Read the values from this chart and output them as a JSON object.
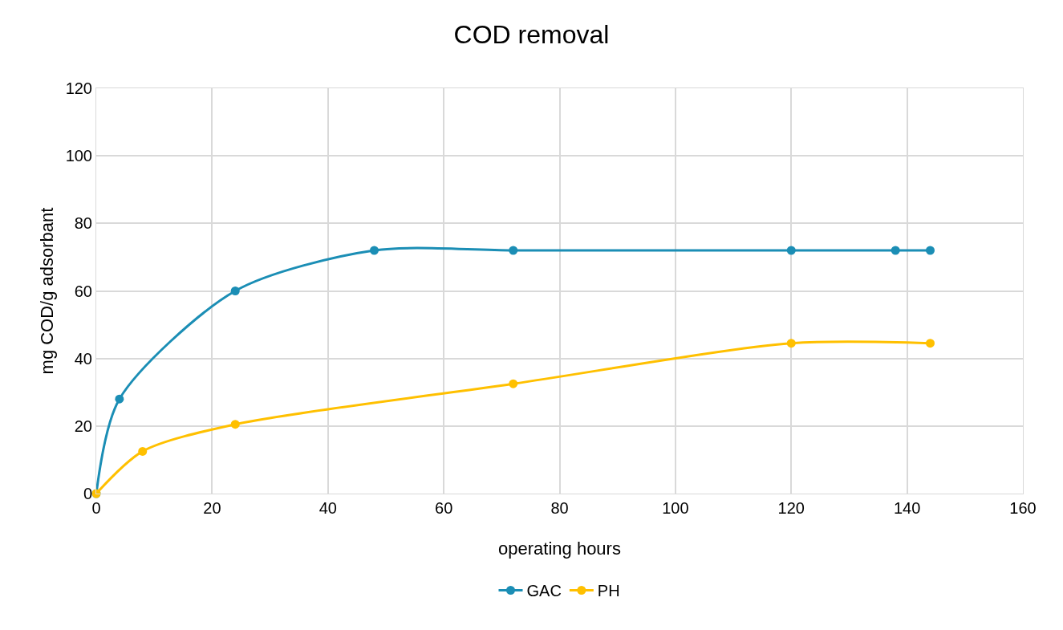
{
  "chart_data": {
    "type": "line",
    "title": "COD removal",
    "xlabel": "operating hours",
    "ylabel": "mg COD/g adsorbant",
    "xlim": [
      0,
      160
    ],
    "xticks": [
      0,
      20,
      40,
      60,
      80,
      100,
      120,
      140,
      160
    ],
    "ylim": [
      0,
      120
    ],
    "yticks": [
      0,
      20,
      40,
      60,
      80,
      100,
      120
    ],
    "grid": true,
    "legend": "bottom",
    "marker": "circle",
    "line_style": "solid",
    "series": [
      {
        "name": "GAC",
        "color": "#1b8eb5",
        "x": [
          0,
          4,
          24,
          48,
          72,
          120,
          138,
          144
        ],
        "values": [
          0,
          28,
          60,
          72,
          72,
          72,
          72,
          72
        ]
      },
      {
        "name": "PH",
        "color": "#ffc000",
        "x": [
          0,
          8,
          24,
          72,
          120,
          144
        ],
        "values": [
          0,
          12.5,
          20.5,
          32.5,
          44.5,
          44.5
        ]
      }
    ]
  }
}
